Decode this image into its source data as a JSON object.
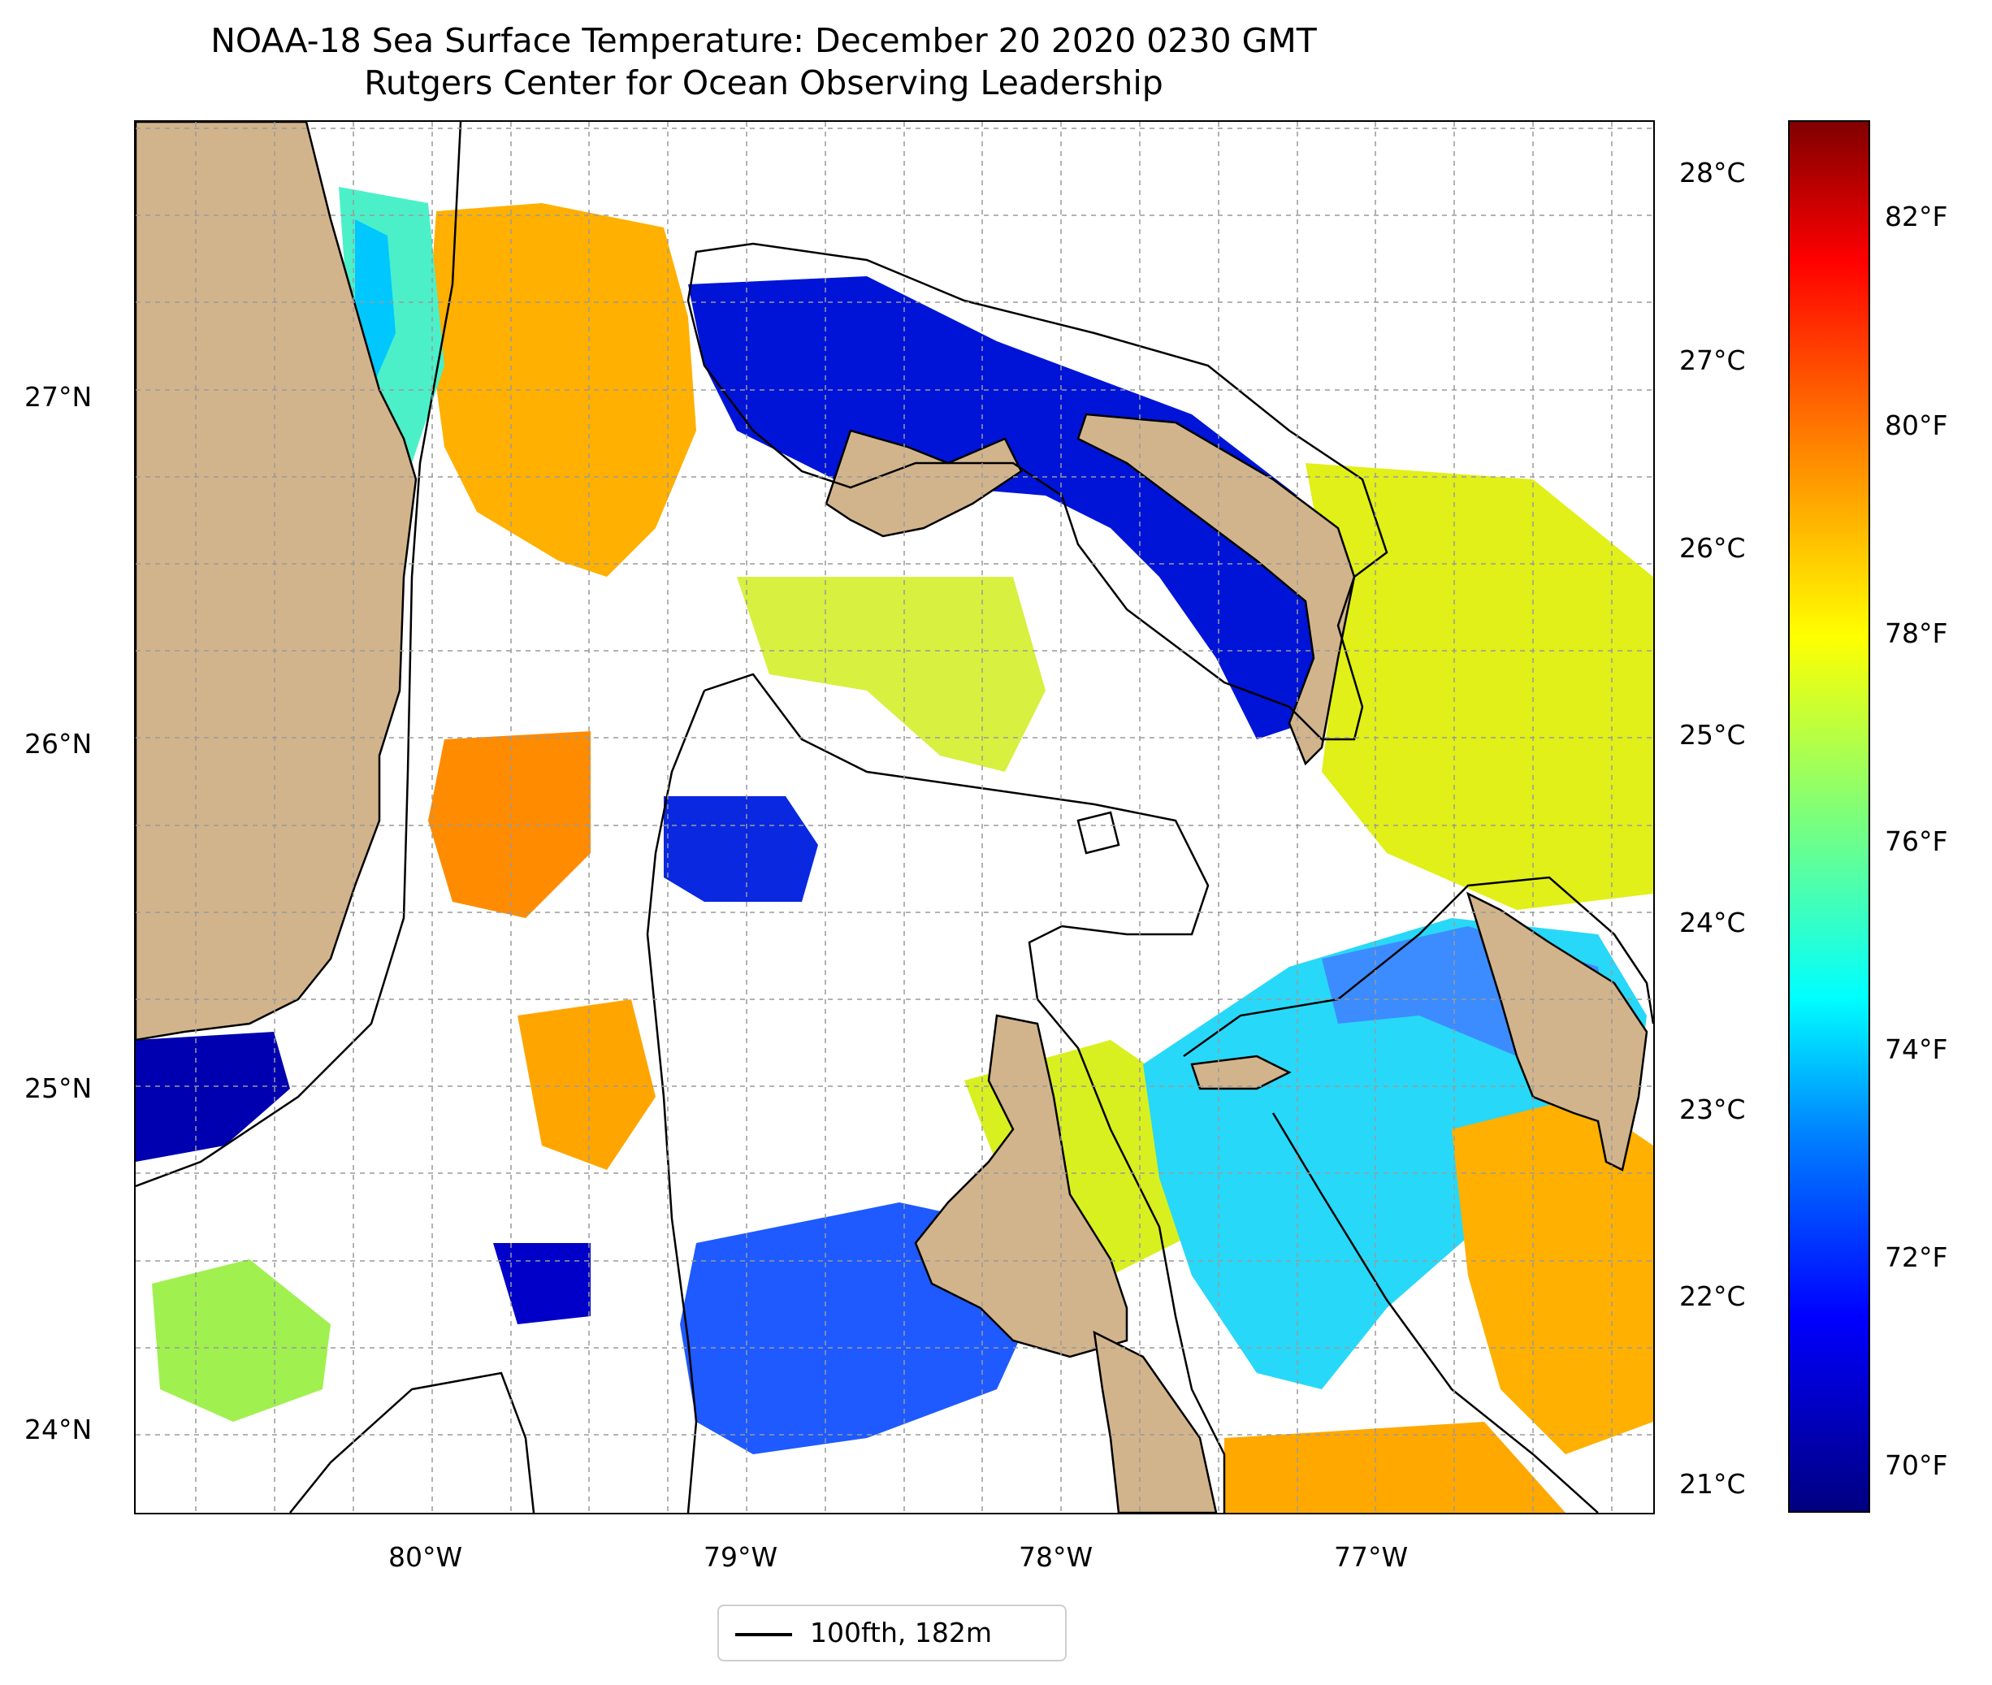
{
  "title": {
    "line1": "NOAA-18 Sea Surface Temperature: December 20 2020 0230 GMT",
    "line2": "Rutgers Center for Ocean Observing Leadership"
  },
  "map": {
    "lon_range": [
      -80.95,
      -76.1
    ],
    "lat_range": [
      23.75,
      27.8
    ],
    "lat_ticks": [
      {
        "value": 27,
        "label": "27°N"
      },
      {
        "value": 26,
        "label": "26°N"
      },
      {
        "value": 25,
        "label": "25°N"
      },
      {
        "value": 24,
        "label": "24°N"
      }
    ],
    "lon_ticks": [
      {
        "value": -80,
        "label": "80°W"
      },
      {
        "value": -79,
        "label": "79°W"
      },
      {
        "value": -78,
        "label": "78°W"
      },
      {
        "value": -77,
        "label": "77°W"
      }
    ],
    "grid": "dashed, on",
    "land_color": "#d2b48c"
  },
  "colorbar": {
    "colormap": "jet",
    "range_f": [
      69.3,
      83.1
    ],
    "celsius_ticks": [
      "28°C",
      "27°C",
      "26°C",
      "25°C",
      "24°C",
      "23°C",
      "22°C",
      "21°C"
    ],
    "fahrenheit_ticks": [
      "82°F",
      "80°F",
      "78°F",
      "76°F",
      "74°F",
      "72°F",
      "70°F"
    ]
  },
  "legend": {
    "label": "100fth, 182m"
  }
}
